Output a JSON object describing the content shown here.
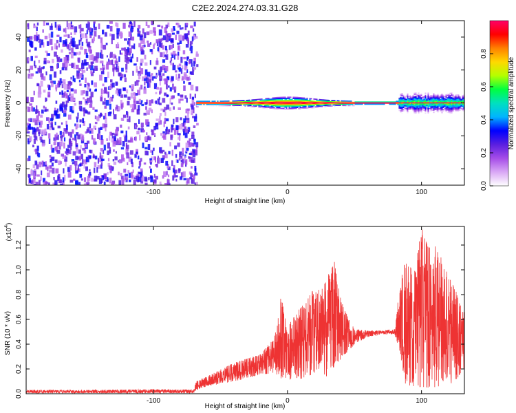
{
  "title": "C2E2.2024.274.03.31.G28",
  "chart_data": [
    {
      "type": "heatmap",
      "title": "C2E2.2024.274.03.31.G28",
      "xlabel": "Height of straight line (km)",
      "ylabel": "Frequency (Hz)",
      "xlim": [
        -195,
        132
      ],
      "ylim": [
        -50,
        50
      ],
      "x_ticks": [
        -100,
        0,
        100
      ],
      "x_tick_labels": [
        "-100",
        "0",
        "100"
      ],
      "y_ticks": [
        -40,
        -20,
        0,
        20,
        40
      ],
      "y_tick_labels": [
        "-40",
        "-20",
        "0",
        "20",
        "40"
      ],
      "colorbar": {
        "label": "Normalized spectral amplitude",
        "range": [
          0,
          1
        ],
        "ticks": [
          0.0,
          0.2,
          0.4,
          0.6,
          0.8
        ],
        "tick_labels": [
          "0.0",
          "0.2",
          "0.4",
          "0.6",
          "0.8"
        ],
        "colors": [
          "#ffffff",
          "#d9a8f5",
          "#a64de8",
          "#5a1fe0",
          "#0000ff",
          "#00b4ff",
          "#00e0c0",
          "#00ff40",
          "#b4ff00",
          "#ffd800",
          "#ff8000",
          "#ff0000",
          "#ff0066"
        ]
      },
      "regions": [
        {
          "x_range": [
            -195,
            -68
          ],
          "description_values": {
            "freq_range": [
              -50,
              50
            ],
            "amplitude_range": [
              0.0,
              0.35
            ]
          }
        },
        {
          "x_range": [
            -68,
            132
          ],
          "description_values": {
            "center_freq": 0,
            "half_width_hz": [
              2,
              10
            ],
            "peak_amplitude": 1.0
          }
        }
      ],
      "grid": false
    },
    {
      "type": "line",
      "xlabel": "Height of straight line (km)",
      "ylabel": "SNR (10 * v/v)",
      "y_multiplier_label": "(x10",
      "y_multiplier_exp": "4",
      "y_multiplier_close": ")",
      "xlim": [
        -195,
        132
      ],
      "ylim": [
        0,
        1.35
      ],
      "x_ticks": [
        -100,
        0,
        100
      ],
      "x_tick_labels": [
        "-100",
        "0",
        "100"
      ],
      "y_ticks": [
        0.0,
        0.2,
        0.4,
        0.6,
        0.8,
        1.0,
        1.2
      ],
      "y_tick_labels": [
        "0.0",
        "0.2",
        "0.4",
        "0.6",
        "0.8",
        "1.0",
        "1.2"
      ],
      "series": [
        {
          "color": "#ee3333",
          "envelope": {
            "x": [
              -195,
              -150,
              -100,
              -70,
              -68,
              -60,
              -40,
              -20,
              -10,
              -5,
              0,
              10,
              20,
              25,
              30,
              35,
              40,
              45,
              50,
              60,
              70,
              80,
              84,
              88,
              95,
              100,
              105,
              110,
              115,
              120,
              125,
              132
            ],
            "low": [
              0.005,
              0.005,
              0.005,
              0.005,
              0.03,
              0.06,
              0.1,
              0.15,
              0.17,
              0.12,
              0.1,
              0.12,
              0.16,
              0.14,
              0.14,
              0.22,
              0.28,
              0.34,
              0.4,
              0.46,
              0.48,
              0.48,
              0.3,
              0.08,
              0.05,
              0.05,
              0.05,
              0.05,
              0.05,
              0.06,
              0.1,
              0.2
            ],
            "high": [
              0.03,
              0.03,
              0.035,
              0.035,
              0.1,
              0.14,
              0.25,
              0.32,
              0.45,
              0.8,
              0.55,
              0.7,
              0.85,
              0.9,
              0.95,
              1.07,
              0.75,
              0.62,
              0.52,
              0.51,
              0.51,
              0.52,
              0.9,
              1.1,
              1.0,
              1.35,
              1.18,
              1.2,
              1.1,
              0.95,
              0.85,
              0.65
            ]
          }
        }
      ],
      "grid": false
    }
  ]
}
